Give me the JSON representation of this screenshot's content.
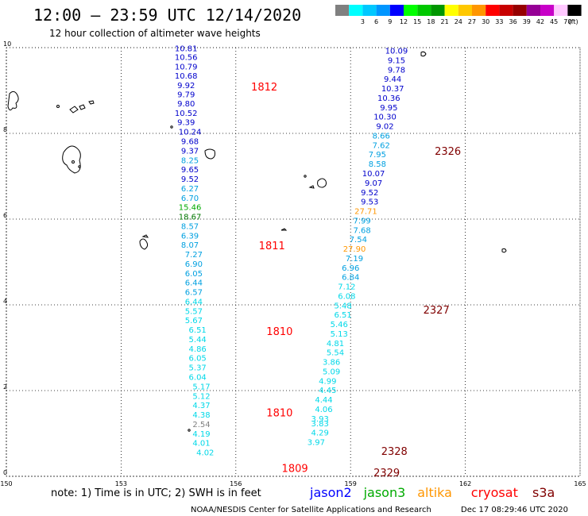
{
  "header": {
    "title": "12:00 – 23:59 UTC 12/14/2020",
    "subtitle": "12 hour collection of altimeter wave heights"
  },
  "legend": {
    "unit": "(ft)",
    "swatches": [
      {
        "color": "#808080",
        "label": ""
      },
      {
        "color": "#00ffff",
        "label": "3"
      },
      {
        "color": "#00c8ff",
        "label": "6"
      },
      {
        "color": "#0096ff",
        "label": "9"
      },
      {
        "color": "#0000ff",
        "label": "12"
      },
      {
        "color": "#00ff00",
        "label": "15"
      },
      {
        "color": "#00c800",
        "label": "18"
      },
      {
        "color": "#009600",
        "label": "21"
      },
      {
        "color": "#ffff00",
        "label": "24"
      },
      {
        "color": "#ffc800",
        "label": "27"
      },
      {
        "color": "#ff9600",
        "label": "30"
      },
      {
        "color": "#ff0000",
        "label": "33"
      },
      {
        "color": "#c80000",
        "label": "36"
      },
      {
        "color": "#960000",
        "label": "39"
      },
      {
        "color": "#960096",
        "label": "42"
      },
      {
        "color": "#c800c8",
        "label": "45"
      },
      {
        "color": "#ffc8ff",
        "label": "70"
      },
      {
        "color": "#000000",
        "label": ""
      }
    ]
  },
  "axes": {
    "lon_ticks": [
      "150",
      "153",
      "156",
      "159",
      "162",
      "165"
    ],
    "lat_ticks": [
      "0",
      "2",
      "4",
      "6",
      "8",
      "10"
    ]
  },
  "passes": [
    {
      "label": "1812",
      "lon": 156.4,
      "lat": 9.0,
      "color": "#ff0000"
    },
    {
      "label": "1811",
      "lon": 156.6,
      "lat": 5.3,
      "color": "#ff0000"
    },
    {
      "label": "1810",
      "lon": 156.8,
      "lat": 3.3,
      "color": "#ff0000"
    },
    {
      "label": "1810",
      "lon": 156.8,
      "lat": 1.4,
      "color": "#ff0000"
    },
    {
      "label": "1809",
      "lon": 157.2,
      "lat": 0.1,
      "color": "#ff0000"
    },
    {
      "label": "2326",
      "lon": 161.2,
      "lat": 7.5,
      "color": "#800000"
    },
    {
      "label": "2327",
      "lon": 160.9,
      "lat": 3.8,
      "color": "#800000"
    },
    {
      "label": "2328",
      "lon": 159.8,
      "lat": 0.5,
      "color": "#800000"
    },
    {
      "label": "2329",
      "lon": 159.6,
      "lat": 0.0,
      "color": "#800000"
    }
  ],
  "tracks": [
    {
      "name": "west",
      "points": [
        {
          "lon": 154.7,
          "lat": 9.92,
          "v": "10.81",
          "c": "#0000cc"
        },
        {
          "lon": 154.7,
          "lat": 9.71,
          "v": "10.56",
          "c": "#0000cc"
        },
        {
          "lon": 154.7,
          "lat": 9.49,
          "v": "10.79",
          "c": "#0000cc"
        },
        {
          "lon": 154.7,
          "lat": 9.28,
          "v": "10.68",
          "c": "#0000cc"
        },
        {
          "lon": 154.7,
          "lat": 9.06,
          "v": "9.92",
          "c": "#0000cc"
        },
        {
          "lon": 154.7,
          "lat": 8.84,
          "v": "9.79",
          "c": "#0000cc"
        },
        {
          "lon": 154.7,
          "lat": 8.63,
          "v": "9.80",
          "c": "#0000cc"
        },
        {
          "lon": 154.7,
          "lat": 8.41,
          "v": "10.52",
          "c": "#0000cc"
        },
        {
          "lon": 154.7,
          "lat": 8.19,
          "v": "9.39",
          "c": "#0000cc"
        },
        {
          "lon": 154.8,
          "lat": 7.97,
          "v": "10.24",
          "c": "#0000cc"
        },
        {
          "lon": 154.8,
          "lat": 7.75,
          "v": "9.68",
          "c": "#0000cc"
        },
        {
          "lon": 154.8,
          "lat": 7.53,
          "v": "9.37",
          "c": "#0000cc"
        },
        {
          "lon": 154.8,
          "lat": 7.31,
          "v": "8.25",
          "c": "#00a0e0"
        },
        {
          "lon": 154.8,
          "lat": 7.09,
          "v": "9.65",
          "c": "#0000cc"
        },
        {
          "lon": 154.8,
          "lat": 6.87,
          "v": "9.52",
          "c": "#0000cc"
        },
        {
          "lon": 154.8,
          "lat": 6.65,
          "v": "6.27",
          "c": "#00a0e0"
        },
        {
          "lon": 154.8,
          "lat": 6.43,
          "v": "6.70",
          "c": "#00a0e0"
        },
        {
          "lon": 154.8,
          "lat": 6.21,
          "v": "15.46",
          "c": "#00aa00"
        },
        {
          "lon": 154.8,
          "lat": 5.99,
          "v": "18.67",
          "c": "#007700"
        },
        {
          "lon": 154.8,
          "lat": 5.77,
          "v": "8.57",
          "c": "#00a0e0"
        },
        {
          "lon": 154.8,
          "lat": 5.55,
          "v": "6.39",
          "c": "#00a0e0"
        },
        {
          "lon": 154.8,
          "lat": 5.33,
          "v": "8.07",
          "c": "#00a0e0"
        },
        {
          "lon": 154.9,
          "lat": 5.11,
          "v": "7.27",
          "c": "#00a0e0"
        },
        {
          "lon": 154.9,
          "lat": 4.89,
          "v": "6.90",
          "c": "#00a0e0"
        },
        {
          "lon": 154.9,
          "lat": 4.67,
          "v": "6.05",
          "c": "#00a0e0"
        },
        {
          "lon": 154.9,
          "lat": 4.45,
          "v": "6.44",
          "c": "#00a0e0"
        },
        {
          "lon": 154.9,
          "lat": 4.23,
          "v": "6.57",
          "c": "#00a0e0"
        },
        {
          "lon": 154.9,
          "lat": 4.01,
          "v": "6.44",
          "c": "#00d8e8"
        },
        {
          "lon": 154.9,
          "lat": 3.79,
          "v": "5.57",
          "c": "#00d8e8"
        },
        {
          "lon": 154.9,
          "lat": 3.57,
          "v": "5.67",
          "c": "#00d8e8"
        },
        {
          "lon": 155.0,
          "lat": 3.35,
          "v": "6.51",
          "c": "#00d8e8"
        },
        {
          "lon": 155.0,
          "lat": 3.13,
          "v": "5.44",
          "c": "#00d8e8"
        },
        {
          "lon": 155.0,
          "lat": 2.91,
          "v": "4.86",
          "c": "#00d8e8"
        },
        {
          "lon": 155.0,
          "lat": 2.69,
          "v": "6.05",
          "c": "#00d8e8"
        },
        {
          "lon": 155.0,
          "lat": 2.47,
          "v": "5.37",
          "c": "#00d8e8"
        },
        {
          "lon": 155.0,
          "lat": 2.25,
          "v": "6.04",
          "c": "#00d8e8"
        },
        {
          "lon": 155.1,
          "lat": 2.03,
          "v": "5.17",
          "c": "#00d8e8"
        },
        {
          "lon": 155.1,
          "lat": 1.81,
          "v": "5.12",
          "c": "#00d8e8"
        },
        {
          "lon": 155.1,
          "lat": 1.59,
          "v": "4.37",
          "c": "#00d8e8"
        },
        {
          "lon": 155.1,
          "lat": 1.37,
          "v": "4.38",
          "c": "#00d8e8"
        },
        {
          "lon": 155.1,
          "lat": 1.15,
          "v": "2.54",
          "c": "#808080"
        },
        {
          "lon": 155.1,
          "lat": 0.93,
          "v": "4.19",
          "c": "#00d8e8"
        },
        {
          "lon": 155.1,
          "lat": 0.71,
          "v": "4.01",
          "c": "#00d8e8"
        },
        {
          "lon": 155.2,
          "lat": 0.49,
          "v": "4.02",
          "c": "#00d8e8"
        }
      ]
    },
    {
      "name": "east",
      "points": [
        {
          "lon": 160.2,
          "lat": 9.86,
          "v": "10.09",
          "c": "#0000cc"
        },
        {
          "lon": 160.2,
          "lat": 9.64,
          "v": "9.15",
          "c": "#0000cc"
        },
        {
          "lon": 160.2,
          "lat": 9.42,
          "v": "9.78",
          "c": "#0000cc"
        },
        {
          "lon": 160.1,
          "lat": 9.2,
          "v": "9.44",
          "c": "#0000cc"
        },
        {
          "lon": 160.1,
          "lat": 8.98,
          "v": "10.37",
          "c": "#0000cc"
        },
        {
          "lon": 160.0,
          "lat": 8.76,
          "v": "10.36",
          "c": "#0000cc"
        },
        {
          "lon": 160.0,
          "lat": 8.54,
          "v": "9.95",
          "c": "#0000cc"
        },
        {
          "lon": 159.9,
          "lat": 8.32,
          "v": "10.30",
          "c": "#0000cc"
        },
        {
          "lon": 159.9,
          "lat": 8.1,
          "v": "9.02",
          "c": "#0000cc"
        },
        {
          "lon": 159.8,
          "lat": 7.88,
          "v": "8.66",
          "c": "#00a0e0"
        },
        {
          "lon": 159.8,
          "lat": 7.66,
          "v": "7.62",
          "c": "#00a0e0"
        },
        {
          "lon": 159.7,
          "lat": 7.44,
          "v": "7.95",
          "c": "#00a0e0"
        },
        {
          "lon": 159.7,
          "lat": 7.22,
          "v": "8.58",
          "c": "#00a0e0"
        },
        {
          "lon": 159.6,
          "lat": 7.0,
          "v": "10.07",
          "c": "#0000cc"
        },
        {
          "lon": 159.6,
          "lat": 6.78,
          "v": "9.07",
          "c": "#0000cc"
        },
        {
          "lon": 159.5,
          "lat": 6.56,
          "v": "9.52",
          "c": "#0000cc"
        },
        {
          "lon": 159.5,
          "lat": 6.34,
          "v": "9.53",
          "c": "#0000cc"
        },
        {
          "lon": 159.4,
          "lat": 6.12,
          "v": "27.71",
          "c": "#ff9600"
        },
        {
          "lon": 159.3,
          "lat": 5.9,
          "v": "7.99",
          "c": "#00a0e0"
        },
        {
          "lon": 159.3,
          "lat": 5.68,
          "v": "7.68",
          "c": "#00a0e0"
        },
        {
          "lon": 159.2,
          "lat": 5.46,
          "v": "7.54",
          "c": "#00a0e0"
        },
        {
          "lon": 159.1,
          "lat": 5.24,
          "v": "27.90",
          "c": "#ff9600"
        },
        {
          "lon": 159.1,
          "lat": 5.02,
          "v": "7.19",
          "c": "#00a0e0"
        },
        {
          "lon": 159.0,
          "lat": 4.8,
          "v": "6.96",
          "c": "#00a0e0"
        },
        {
          "lon": 159.0,
          "lat": 4.58,
          "v": "6.84",
          "c": "#00a0e0"
        },
        {
          "lon": 158.9,
          "lat": 4.36,
          "v": "7.12",
          "c": "#00d8e8"
        },
        {
          "lon": 158.9,
          "lat": 4.14,
          "v": "6.08",
          "c": "#00d8e8"
        },
        {
          "lon": 158.8,
          "lat": 3.92,
          "v": "5.48",
          "c": "#00d8e8"
        },
        {
          "lon": 158.8,
          "lat": 3.7,
          "v": "6.51",
          "c": "#00d8e8"
        },
        {
          "lon": 158.7,
          "lat": 3.48,
          "v": "5.46",
          "c": "#00d8e8"
        },
        {
          "lon": 158.7,
          "lat": 3.26,
          "v": "5.13",
          "c": "#00d8e8"
        },
        {
          "lon": 158.6,
          "lat": 3.04,
          "v": "4.81",
          "c": "#00d8e8"
        },
        {
          "lon": 158.6,
          "lat": 2.82,
          "v": "5.54",
          "c": "#00d8e8"
        },
        {
          "lon": 158.5,
          "lat": 2.6,
          "v": "3.86",
          "c": "#00d8e8"
        },
        {
          "lon": 158.5,
          "lat": 2.38,
          "v": "5.09",
          "c": "#00d8e8"
        },
        {
          "lon": 158.4,
          "lat": 2.16,
          "v": "4.99",
          "c": "#00d8e8"
        },
        {
          "lon": 158.4,
          "lat": 1.94,
          "v": "4.45",
          "c": "#00d8e8"
        },
        {
          "lon": 158.3,
          "lat": 1.72,
          "v": "4.44",
          "c": "#00d8e8"
        },
        {
          "lon": 158.3,
          "lat": 1.5,
          "v": "4.06",
          "c": "#00d8e8"
        },
        {
          "lon": 158.2,
          "lat": 1.28,
          "v": "3.93",
          "c": "#00d8e8"
        },
        {
          "lon": 158.2,
          "lat": 1.17,
          "v": "3.83",
          "c": "#00d8e8"
        },
        {
          "lon": 158.2,
          "lat": 0.95,
          "v": "4.29",
          "c": "#00d8e8"
        },
        {
          "lon": 158.1,
          "lat": 0.73,
          "v": "3.97",
          "c": "#00d8e8"
        }
      ]
    }
  ],
  "footer": {
    "note": "note: 1) Time is in UTC; 2) SWH is in feet",
    "satellites": [
      {
        "name": "jason2",
        "color": "#0000ff"
      },
      {
        "name": "jason3",
        "color": "#00aa00"
      },
      {
        "name": "altika",
        "color": "#ff9600"
      },
      {
        "name": "cryosat",
        "color": "#ff0000"
      },
      {
        "name": "s3a",
        "color": "#800000"
      }
    ],
    "credit": "NOAA/NESDIS Center for Satellite Applications and Research",
    "timestamp": "Dec 17 08:29:46 UTC 2020"
  }
}
